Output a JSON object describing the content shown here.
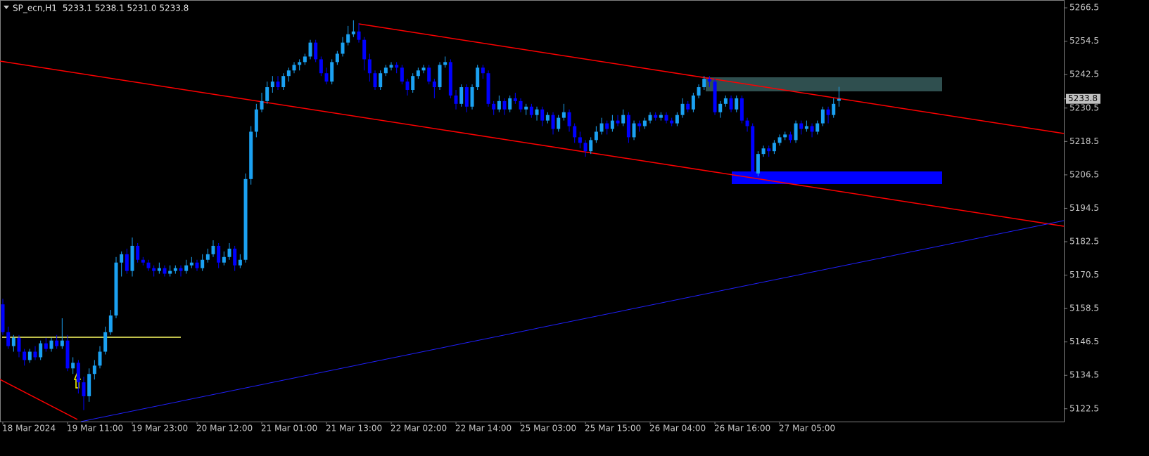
{
  "chart_data": {
    "type": "candlestick",
    "title": "SP_ecn,H1",
    "quote": "5233.1 5238.1 5231.0 5233.8",
    "up_color": "#1ba1f2",
    "down_color": "#0000ff",
    "last_price": 5233.8,
    "ylim": [
      5117.9,
      5269.3
    ],
    "yticks": [
      5266.5,
      5254.5,
      5242.5,
      5230.5,
      5218.5,
      5206.5,
      5194.5,
      5182.5,
      5170.5,
      5158.5,
      5146.5,
      5134.5,
      5122.5
    ],
    "categories": [
      "18 Mar 2024",
      null,
      null,
      null,
      null,
      null,
      null,
      null,
      null,
      null,
      null,
      null,
      "19 Mar 11:00",
      null,
      null,
      null,
      null,
      null,
      null,
      null,
      null,
      null,
      null,
      null,
      "19 Mar 23:00",
      null,
      null,
      null,
      null,
      null,
      null,
      null,
      null,
      null,
      null,
      null,
      "20 Mar 12:00",
      null,
      null,
      null,
      null,
      null,
      null,
      null,
      null,
      null,
      null,
      null,
      "21 Mar 01:00",
      null,
      null,
      null,
      null,
      null,
      null,
      null,
      null,
      null,
      null,
      null,
      "21 Mar 13:00",
      null,
      null,
      null,
      null,
      null,
      null,
      null,
      null,
      null,
      null,
      null,
      "22 Mar 02:00",
      null,
      null,
      null,
      null,
      null,
      null,
      null,
      null,
      null,
      null,
      null,
      "22 Mar 14:00",
      null,
      null,
      null,
      null,
      null,
      null,
      null,
      null,
      null,
      null,
      null,
      "25 Mar 03:00",
      null,
      null,
      null,
      null,
      null,
      null,
      null,
      null,
      null,
      null,
      null,
      "25 Mar 15:00",
      null,
      null,
      null,
      null,
      null,
      null,
      null,
      null,
      null,
      null,
      null,
      "26 Mar 04:00",
      null,
      null,
      null,
      null,
      null,
      null,
      null,
      null,
      null,
      null,
      null,
      "26 Mar 16:00",
      null,
      null,
      null,
      null,
      null,
      null,
      null,
      null,
      null,
      null,
      null,
      "27 Mar 05:00",
      null,
      null,
      null,
      null,
      null,
      null,
      null,
      null,
      null,
      null,
      null
    ],
    "ohlc": [
      [
        5160,
        5162,
        5149,
        5150
      ],
      [
        5150,
        5152,
        5144,
        5145
      ],
      [
        5145,
        5149,
        5143,
        5148
      ],
      [
        5148,
        5149,
        5141,
        5143
      ],
      [
        5143,
        5144,
        5138,
        5140
      ],
      [
        5140,
        5144,
        5139,
        5143
      ],
      [
        5143,
        5145,
        5140,
        5141
      ],
      [
        5141,
        5147,
        5140,
        5146
      ],
      [
        5146,
        5148,
        5143,
        5144
      ],
      [
        5144,
        5148,
        5143,
        5147
      ],
      [
        5147,
        5149,
        5144,
        5145
      ],
      [
        5145,
        5155,
        5144,
        5147
      ],
      [
        5147,
        5149,
        5136,
        5137
      ],
      [
        5137,
        5141,
        5135,
        5139
      ],
      [
        5139,
        5140,
        5128,
        5132
      ],
      [
        5132,
        5134,
        5122,
        5127
      ],
      [
        5127,
        5137,
        5125,
        5135
      ],
      [
        5135,
        5140,
        5133,
        5138
      ],
      [
        5138,
        5145,
        5137,
        5143
      ],
      [
        5143,
        5152,
        5142,
        5150
      ],
      [
        5150,
        5158,
        5149,
        5156
      ],
      [
        5156,
        5177,
        5155,
        5175
      ],
      [
        5175,
        5179,
        5170,
        5178
      ],
      [
        5178,
        5180,
        5171,
        5172
      ],
      [
        5172,
        5184,
        5170,
        5181
      ],
      [
        5181,
        5182,
        5175,
        5176
      ],
      [
        5176,
        5177,
        5174,
        5175
      ],
      [
        5175,
        5176,
        5172,
        5173
      ],
      [
        5173,
        5174,
        5170,
        5172
      ],
      [
        5172,
        5175,
        5171,
        5173
      ],
      [
        5173,
        5174,
        5170,
        5171
      ],
      [
        5171,
        5174,
        5170,
        5172
      ],
      [
        5172,
        5174,
        5171,
        5173
      ],
      [
        5173,
        5174,
        5170,
        5172
      ],
      [
        5172,
        5176,
        5171,
        5174
      ],
      [
        5174,
        5177,
        5173,
        5175
      ],
      [
        5175,
        5176,
        5172,
        5173
      ],
      [
        5173,
        5178,
        5172,
        5176
      ],
      [
        5176,
        5180,
        5175,
        5178
      ],
      [
        5178,
        5183,
        5177,
        5181
      ],
      [
        5181,
        5182,
        5173,
        5175
      ],
      [
        5175,
        5179,
        5174,
        5177
      ],
      [
        5177,
        5182,
        5176,
        5180
      ],
      [
        5180,
        5181,
        5172,
        5174
      ],
      [
        5174,
        5178,
        5173,
        5176
      ],
      [
        5176,
        5207,
        5175,
        5205
      ],
      [
        5205,
        5224,
        5203,
        5222
      ],
      [
        5222,
        5232,
        5220,
        5230
      ],
      [
        5230,
        5236,
        5229,
        5233
      ],
      [
        5233,
        5240,
        5232,
        5238
      ],
      [
        5238,
        5242,
        5236,
        5240
      ],
      [
        5240,
        5242,
        5237,
        5238
      ],
      [
        5238,
        5243,
        5237,
        5242
      ],
      [
        5242,
        5245,
        5240,
        5244
      ],
      [
        5244,
        5247,
        5243,
        5246
      ],
      [
        5246,
        5248,
        5244,
        5247
      ],
      [
        5247,
        5250,
        5246,
        5249
      ],
      [
        5249,
        5255,
        5248,
        5254
      ],
      [
        5254,
        5255,
        5247,
        5248
      ],
      [
        5248,
        5249,
        5242,
        5243
      ],
      [
        5243,
        5245,
        5239,
        5240
      ],
      [
        5240,
        5248,
        5239,
        5247
      ],
      [
        5247,
        5251,
        5246,
        5250
      ],
      [
        5250,
        5256,
        5249,
        5254
      ],
      [
        5254,
        5260,
        5253,
        5257
      ],
      [
        5257,
        5262,
        5256,
        5258
      ],
      [
        5258,
        5261,
        5254,
        5255
      ],
      [
        5255,
        5256,
        5244,
        5248
      ],
      [
        5248,
        5250,
        5240,
        5243
      ],
      [
        5243,
        5244,
        5237,
        5238
      ],
      [
        5238,
        5244,
        5237,
        5243
      ],
      [
        5243,
        5246,
        5242,
        5245
      ],
      [
        5245,
        5247,
        5244,
        5246
      ],
      [
        5246,
        5247,
        5243,
        5245
      ],
      [
        5245,
        5246,
        5239,
        5240
      ],
      [
        5240,
        5241,
        5235,
        5237
      ],
      [
        5237,
        5243,
        5236,
        5242
      ],
      [
        5242,
        5245,
        5241,
        5244
      ],
      [
        5244,
        5246,
        5243,
        5245
      ],
      [
        5245,
        5246,
        5239,
        5240
      ],
      [
        5240,
        5241,
        5234,
        5238
      ],
      [
        5238,
        5247,
        5237,
        5246
      ],
      [
        5246,
        5249,
        5245,
        5247
      ],
      [
        5247,
        5248,
        5234,
        5235
      ],
      [
        5235,
        5237,
        5230,
        5232
      ],
      [
        5232,
        5239,
        5231,
        5238
      ],
      [
        5238,
        5239,
        5229,
        5231
      ],
      [
        5231,
        5239,
        5230,
        5238
      ],
      [
        5238,
        5246,
        5237,
        5245
      ],
      [
        5245,
        5246,
        5241,
        5243
      ],
      [
        5243,
        5244,
        5231,
        5232
      ],
      [
        5232,
        5233,
        5228,
        5230
      ],
      [
        5230,
        5235,
        5229,
        5233
      ],
      [
        5233,
        5234,
        5228,
        5230
      ],
      [
        5230,
        5235,
        5229,
        5234
      ],
      [
        5234,
        5236,
        5232,
        5233
      ],
      [
        5233,
        5234,
        5229,
        5230
      ],
      [
        5230,
        5232,
        5228,
        5231
      ],
      [
        5231,
        5232,
        5227,
        5228
      ],
      [
        5228,
        5231,
        5226,
        5230
      ],
      [
        5230,
        5231,
        5224,
        5226
      ],
      [
        5226,
        5229,
        5225,
        5228
      ],
      [
        5228,
        5229,
        5221,
        5223
      ],
      [
        5223,
        5228,
        5222,
        5227
      ],
      [
        5227,
        5232,
        5226,
        5229
      ],
      [
        5229,
        5230,
        5222,
        5224
      ],
      [
        5224,
        5225,
        5218,
        5220
      ],
      [
        5220,
        5222,
        5216,
        5218
      ],
      [
        5218,
        5219,
        5213,
        5215
      ],
      [
        5215,
        5220,
        5214,
        5219
      ],
      [
        5219,
        5224,
        5218,
        5222
      ],
      [
        5222,
        5227,
        5221,
        5225
      ],
      [
        5225,
        5226,
        5221,
        5223
      ],
      [
        5223,
        5228,
        5222,
        5226
      ],
      [
        5226,
        5228,
        5224,
        5225
      ],
      [
        5225,
        5230,
        5224,
        5228
      ],
      [
        5228,
        5229,
        5218,
        5220
      ],
      [
        5220,
        5226,
        5219,
        5225
      ],
      [
        5225,
        5226,
        5222,
        5224
      ],
      [
        5224,
        5227,
        5223,
        5226
      ],
      [
        5226,
        5229,
        5225,
        5228
      ],
      [
        5228,
        5229,
        5226,
        5227
      ],
      [
        5227,
        5229,
        5226,
        5228
      ],
      [
        5228,
        5229,
        5225,
        5226
      ],
      [
        5226,
        5227,
        5224,
        5225
      ],
      [
        5225,
        5229,
        5224,
        5228
      ],
      [
        5228,
        5234,
        5227,
        5232
      ],
      [
        5232,
        5233,
        5229,
        5230
      ],
      [
        5230,
        5236,
        5229,
        5235
      ],
      [
        5235,
        5239,
        5234,
        5238
      ],
      [
        5238,
        5242,
        5237,
        5241
      ],
      [
        5241,
        5242,
        5238,
        5240
      ],
      [
        5240,
        5241,
        5228,
        5229
      ],
      [
        5229,
        5233,
        5227,
        5232
      ],
      [
        5232,
        5235,
        5231,
        5234
      ],
      [
        5234,
        5235,
        5229,
        5230
      ],
      [
        5230,
        5235,
        5229,
        5234
      ],
      [
        5234,
        5235,
        5225,
        5226
      ],
      [
        5226,
        5227,
        5222,
        5224
      ],
      [
        5224,
        5225,
        5206,
        5207
      ],
      [
        5207,
        5215,
        5206,
        5214
      ],
      [
        5214,
        5217,
        5213,
        5216
      ],
      [
        5216,
        5217,
        5213,
        5215
      ],
      [
        5215,
        5219,
        5214,
        5218
      ],
      [
        5218,
        5221,
        5217,
        5220
      ],
      [
        5220,
        5222,
        5219,
        5221
      ],
      [
        5221,
        5222,
        5218,
        5219
      ],
      [
        5219,
        5226,
        5218,
        5225
      ],
      [
        5225,
        5226,
        5221,
        5223
      ],
      [
        5223,
        5226,
        5222,
        5224
      ],
      [
        5224,
        5225,
        5220,
        5222
      ],
      [
        5222,
        5226,
        5221,
        5225
      ],
      [
        5225,
        5231,
        5224,
        5230
      ],
      [
        5230,
        5231,
        5225,
        5228
      ],
      [
        5228,
        5234,
        5227,
        5232
      ],
      [
        5233.1,
        5238.1,
        5231.0,
        5233.8
      ]
    ]
  }
}
